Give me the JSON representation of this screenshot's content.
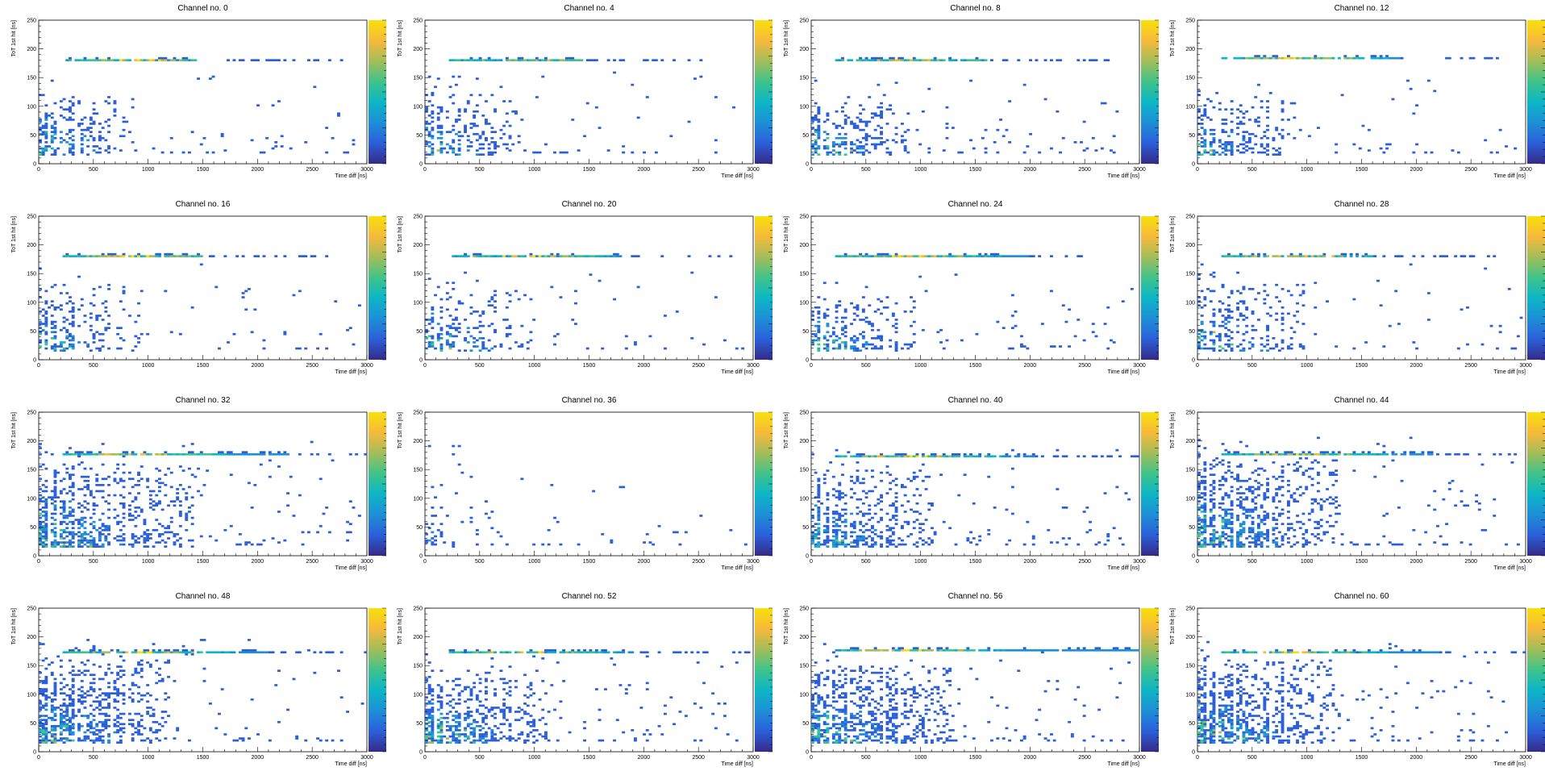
{
  "chart_data": {
    "type": "heatmap",
    "axis_titles": {
      "x": "Time diff [ns]",
      "y": "ToT 1st hit [ns]"
    },
    "xlim": [
      0,
      3000
    ],
    "ylim": [
      0,
      250
    ],
    "x_ticks": [
      0,
      500,
      1000,
      1500,
      2000,
      2500,
      3000
    ],
    "y_ticks": [
      0,
      50,
      100,
      150,
      200,
      250
    ],
    "colormap": [
      "#352a87",
      "#2b5fd8",
      "#1d8fd6",
      "#0cb6c6",
      "#3fc38a",
      "#a3bd5a",
      "#f6b93b",
      "#f9e00b"
    ],
    "panels": [
      {
        "title": "Channel no. 0",
        "band_y": 182,
        "band_end": 1450,
        "tail_end": 2850,
        "cluster_xmax": 900,
        "cluster_ymax": 120,
        "density": 0.45,
        "spread": 0.12
      },
      {
        "title": "Channel no. 4",
        "band_y": 182,
        "band_end": 1450,
        "tail_end": 2750,
        "cluster_xmax": 850,
        "cluster_ymax": 120,
        "density": 0.45,
        "spread": 0.15
      },
      {
        "title": "Channel no. 8",
        "band_y": 182,
        "band_end": 1600,
        "tail_end": 2850,
        "cluster_xmax": 900,
        "cluster_ymax": 110,
        "density": 0.5,
        "spread": 0.18
      },
      {
        "title": "Channel no. 12",
        "band_y": 183,
        "band_end": 1850,
        "tail_end": 2800,
        "cluster_xmax": 900,
        "cluster_ymax": 110,
        "density": 0.45,
        "spread": 0.18
      },
      {
        "title": "Channel no. 16",
        "band_y": 180,
        "band_end": 1500,
        "tail_end": 2650,
        "cluster_xmax": 950,
        "cluster_ymax": 130,
        "density": 0.4,
        "spread": 0.1
      },
      {
        "title": "Channel no. 20",
        "band_y": 182,
        "band_end": 1800,
        "tail_end": 2800,
        "cluster_xmax": 1000,
        "cluster_ymax": 120,
        "density": 0.35,
        "spread": 0.1
      },
      {
        "title": "Channel no. 24",
        "band_y": 182,
        "band_end": 2000,
        "tail_end": 2700,
        "cluster_xmax": 950,
        "cluster_ymax": 110,
        "density": 0.45,
        "spread": 0.18
      },
      {
        "title": "Channel no. 28",
        "band_y": 180,
        "band_end": 1600,
        "tail_end": 2800,
        "cluster_xmax": 1000,
        "cluster_ymax": 130,
        "density": 0.4,
        "spread": 0.15
      },
      {
        "title": "Channel no. 32",
        "band_y": 175,
        "band_end": 2300,
        "tail_end": 3000,
        "cluster_xmax": 1400,
        "cluster_ymax": 160,
        "density": 0.65,
        "spread": 0.4
      },
      {
        "title": "Channel no. 36",
        "band_y": 0,
        "band_end": 0,
        "tail_end": 0,
        "cluster_xmax": 250,
        "cluster_ymax": 100,
        "density": 0.25,
        "spread": 0.05
      },
      {
        "title": "Channel no. 40",
        "band_y": 174,
        "band_end": 2050,
        "tail_end": 3000,
        "cluster_xmax": 1100,
        "cluster_ymax": 150,
        "density": 0.6,
        "spread": 0.35
      },
      {
        "title": "Channel no. 44",
        "band_y": 175,
        "band_end": 2150,
        "tail_end": 3000,
        "cluster_xmax": 1300,
        "cluster_ymax": 170,
        "density": 0.7,
        "spread": 0.4
      },
      {
        "title": "Channel no. 48",
        "band_y": 173,
        "band_end": 2100,
        "tail_end": 3000,
        "cluster_xmax": 1200,
        "cluster_ymax": 160,
        "density": 0.7,
        "spread": 0.4
      },
      {
        "title": "Channel no. 52",
        "band_y": 173,
        "band_end": 1900,
        "tail_end": 3000,
        "cluster_xmax": 1100,
        "cluster_ymax": 140,
        "density": 0.65,
        "spread": 0.35
      },
      {
        "title": "Channel no. 56",
        "band_y": 177,
        "band_end": 3000,
        "tail_end": 3000,
        "cluster_xmax": 1300,
        "cluster_ymax": 150,
        "density": 0.7,
        "spread": 0.4
      },
      {
        "title": "Channel no. 60",
        "band_y": 173,
        "band_end": 2200,
        "tail_end": 3000,
        "cluster_xmax": 1250,
        "cluster_ymax": 160,
        "density": 0.7,
        "spread": 0.4
      }
    ]
  }
}
